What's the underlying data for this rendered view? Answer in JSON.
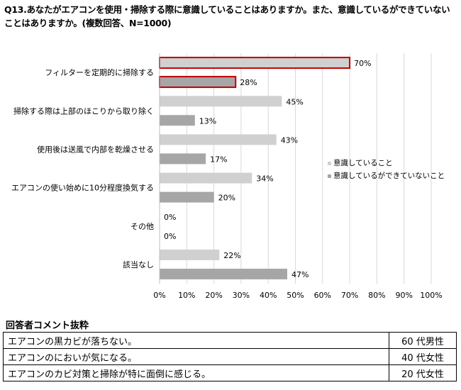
{
  "question": "Q13.あなたがエアコンを使用・掃除する際に意識していることはありますか。また、意識しているができていないことはありますか。(複数回答、N=1000)",
  "chart_data": {
    "type": "bar",
    "orientation": "horizontal",
    "categories": [
      "フィルターを定期的に掃除する",
      "掃除する際は上部のほこりから取り除く",
      "使用後は送風で内部を乾燥させる",
      "エアコンの使い始めに10分程度換気する",
      "その他",
      "該当なし"
    ],
    "series": [
      {
        "name": "意識していること",
        "values": [
          70,
          45,
          43,
          34,
          0,
          22
        ],
        "labels": [
          "70%",
          "45%",
          "43%",
          "34%",
          "0%",
          "22%"
        ],
        "color": "#d0d0d0"
      },
      {
        "name": "意識しているができていないこと",
        "values": [
          28,
          13,
          17,
          20,
          0,
          47
        ],
        "labels": [
          "28%",
          "13%",
          "17%",
          "20%",
          "0%",
          "47%"
        ],
        "color": "#a6a6a6"
      }
    ],
    "highlight_category": 0,
    "highlight_color": "#c00000",
    "xlim": [
      0,
      100
    ],
    "xticks": [
      "0%",
      "10%",
      "20%",
      "30%",
      "40%",
      "50%",
      "60%",
      "70%",
      "80%",
      "90%",
      "100%"
    ],
    "grid": true,
    "legend_position": "right"
  },
  "comments": {
    "title": "回答者コメント抜粋",
    "rows": [
      {
        "comment": "エアコンの黒カビが落ちない。",
        "respondent": "60 代男性"
      },
      {
        "comment": "エアコンのにおいが気になる。",
        "respondent": "40 代女性"
      },
      {
        "comment": "エアコンのカビ対策と掃除が特に面倒に感じる。",
        "respondent": "20 代女性"
      }
    ]
  }
}
